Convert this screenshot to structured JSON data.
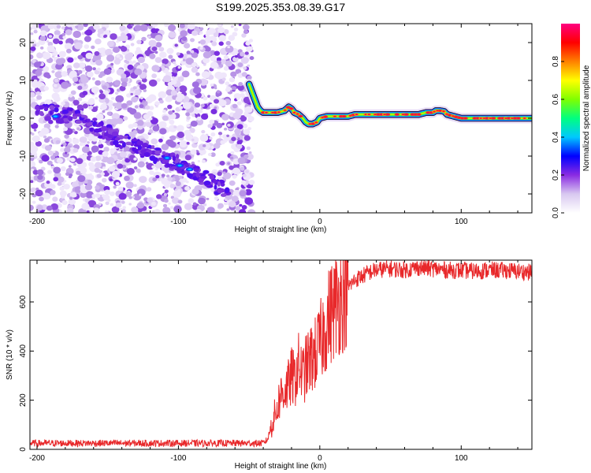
{
  "title": "S199.2025.353.08.39.G17",
  "colors": {
    "snr_line": "#e8282a",
    "spectrogram_track": "#8a2be2",
    "axis": "#000000"
  },
  "chart_data": [
    {
      "type": "heatmap",
      "title": "S199.2025.353.08.39.G17",
      "xlabel": "Height of straight line (km)",
      "ylabel": "Frequency (Hz)",
      "xlim": [
        -205,
        150
      ],
      "ylim": [
        -25,
        25
      ],
      "xticks": [
        -200,
        -100,
        0,
        100
      ],
      "yticks": [
        -20,
        -10,
        0,
        10,
        20
      ],
      "colorbar": {
        "label": "Normalized spectral amplitude",
        "range": [
          0,
          1
        ],
        "ticks": [
          "0.0",
          "0.2",
          "0.4",
          "0.6",
          "0.8"
        ],
        "colormap": [
          "#ffffff",
          "#d8c8f0",
          "#8a2be2",
          "#0000ff",
          "#00c8ff",
          "#00ff80",
          "#80ff00",
          "#ffff00",
          "#ff8000",
          "#ff0000",
          "#ff0080"
        ]
      },
      "noise_region_x": [
        -205,
        -48
      ],
      "ridge": {
        "x": [
          -200,
          -195,
          -190,
          -180,
          -170,
          -160,
          -150,
          -140,
          -130,
          -120,
          -110,
          -100,
          -90,
          -80,
          -70,
          -65
        ],
        "y": [
          2,
          2,
          1.5,
          1,
          0,
          -2,
          -4,
          -6,
          -7.5,
          -9,
          -10.5,
          -12,
          -14,
          -16,
          -18.5,
          -20
        ]
      },
      "track": {
        "x": [
          -50,
          -48,
          -46,
          -44,
          -42,
          -40,
          -35,
          -30,
          -25,
          -22,
          -20,
          -18,
          -15,
          -12,
          -10,
          -8,
          -5,
          -2,
          0,
          5,
          10,
          15,
          20,
          25,
          30,
          40,
          50,
          55,
          60,
          65,
          70,
          75,
          80,
          82,
          85,
          88,
          90,
          95,
          100,
          110,
          120,
          130,
          140,
          150
        ],
        "y": [
          9,
          7,
          5,
          3,
          2,
          1.5,
          1.5,
          1.5,
          2,
          3,
          2.5,
          1.5,
          1,
          0,
          -1,
          -1.5,
          -1.5,
          -1,
          0,
          0.5,
          0.5,
          0.5,
          0.5,
          1,
          1,
          1,
          1,
          1,
          1,
          1,
          1,
          1.5,
          1.5,
          2,
          2,
          1.8,
          1,
          0.5,
          0,
          0,
          0,
          0,
          0,
          0
        ]
      }
    },
    {
      "type": "line",
      "xlabel": "Height of straight line (km)",
      "ylabel": "SNR (10 * v/v)",
      "xlim": [
        -205,
        150
      ],
      "ylim": [
        0,
        770
      ],
      "xticks": [
        -200,
        -100,
        0,
        100
      ],
      "yticks": [
        0,
        200,
        400,
        600
      ],
      "series": [
        {
          "name": "SNR",
          "x": [
            -205,
            -150,
            -100,
            -50,
            -40,
            -37,
            -35,
            -33,
            -30,
            -28,
            -25,
            -22,
            -20,
            -18,
            -15,
            -12,
            -10,
            -7,
            -5,
            -3,
            0,
            3,
            5,
            10,
            15,
            20,
            25,
            30,
            35,
            40,
            50,
            60,
            70,
            80,
            90,
            100,
            110,
            120,
            130,
            140,
            150
          ],
          "y": [
            25,
            25,
            25,
            25,
            25,
            40,
            80,
            120,
            170,
            220,
            240,
            260,
            300,
            280,
            340,
            300,
            330,
            360,
            380,
            390,
            430,
            480,
            520,
            580,
            620,
            660,
            690,
            705,
            720,
            730,
            735,
            730,
            740,
            735,
            730,
            728,
            725,
            730,
            728,
            725,
            720
          ]
        }
      ]
    }
  ]
}
